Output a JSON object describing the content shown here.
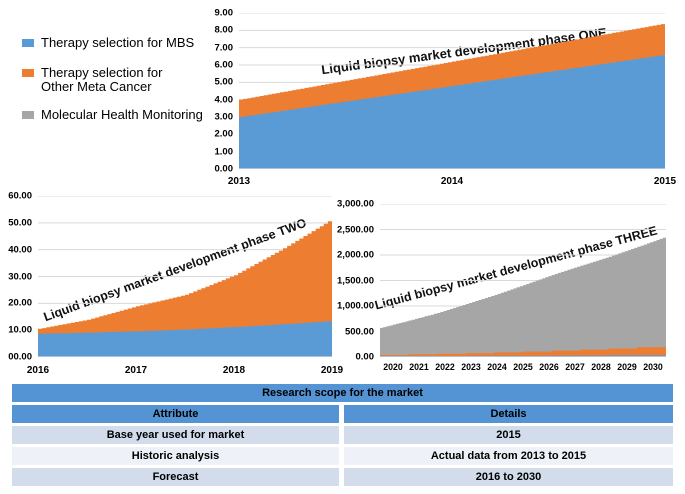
{
  "legend": {
    "items": [
      {
        "label": "Therapy selection for MBS",
        "color": "#5B9BD5"
      },
      {
        "label": "Therapy selection for\nOther Meta Cancer",
        "color": "#ED7D31"
      },
      {
        "label": "Molecular Health Monitoring",
        "color": "#A6A6A6"
      }
    ]
  },
  "colors": {
    "blue": "#5B9BD5",
    "orange": "#ED7D31",
    "gray": "#A6A6A6",
    "grid": "#D9D9D9",
    "axis": "#ABC3DA",
    "table_header": "#5494D4",
    "table_row_light": "#D2DCEB",
    "table_row_lighter": "#EEF1F8"
  },
  "chart_data": [
    {
      "id": "phase-one",
      "type": "area",
      "stacked": true,
      "annotation": "Liquid biopsy market development phase ONE",
      "x": [
        2013,
        2014,
        2015
      ],
      "x_tick_values": [
        2013,
        2014,
        2015
      ],
      "x_tick_labels": [
        "2013",
        "2014",
        "2015"
      ],
      "ylim": [
        0,
        9
      ],
      "grid": true,
      "legend_position": "left",
      "yticks": [
        {
          "value": 0,
          "label": "0.00"
        },
        {
          "value": 1,
          "label": "1.00"
        },
        {
          "value": 2,
          "label": "2.00"
        },
        {
          "value": 3,
          "label": "3.00"
        },
        {
          "value": 4,
          "label": "4.00"
        },
        {
          "value": 5,
          "label": "5.00"
        },
        {
          "value": 6,
          "label": "6.00"
        },
        {
          "value": 7,
          "label": "7.00"
        },
        {
          "value": 8,
          "label": "8.00"
        },
        {
          "value": 9,
          "label": "9.00"
        }
      ],
      "series": [
        {
          "name": "Therapy selection for MBS",
          "color": "#5B9BD5",
          "values": [
            3.0,
            4.8,
            6.6
          ],
          "steps_per_x": 52
        },
        {
          "name": "Therapy selection for Other Meta Cancer",
          "color": "#ED7D31",
          "values": [
            1.0,
            1.4,
            1.8
          ],
          "steps_per_x": 52
        }
      ]
    },
    {
      "id": "phase-two",
      "type": "area",
      "stacked": true,
      "annotation": "Liquid biopsy market development phase TWO",
      "x": [
        2016,
        2016.5,
        2017,
        2017.5,
        2018,
        2018.5,
        2019
      ],
      "x_tick_values": [
        2016,
        2017,
        2018,
        2019
      ],
      "x_tick_labels": [
        "2016",
        "2017",
        "2018",
        "2019"
      ],
      "ylim": [
        0,
        60
      ],
      "grid": true,
      "yticks": [
        {
          "value": 0,
          "label": "00.00"
        },
        {
          "value": 10,
          "label": "10.00"
        },
        {
          "value": 20,
          "label": "20.00"
        },
        {
          "value": 30,
          "label": "30.00"
        },
        {
          "value": 40,
          "label": "40.00"
        },
        {
          "value": 50,
          "label": "50.00"
        },
        {
          "value": 60,
          "label": "60.00"
        }
      ],
      "series": [
        {
          "name": "Therapy selection for MBS",
          "color": "#5B9BD5",
          "values": [
            8.7,
            9.1,
            9.6,
            10.3,
            11.2,
            12.3,
            13.5
          ],
          "steps_per_x": 5
        },
        {
          "name": "Therapy selection for Other Meta Cancer",
          "color": "#ED7D31",
          "values": [
            1.8,
            4.8,
            9.3,
            12.9,
            19.3,
            28.2,
            38.0
          ],
          "steps_per_x": 12
        }
      ]
    },
    {
      "id": "phase-three",
      "type": "area",
      "stacked": true,
      "annotation": "Liquid biopsy market development phase THREE",
      "x": [
        2020,
        2021,
        2022,
        2023,
        2024,
        2025,
        2026,
        2027,
        2028,
        2029,
        2030
      ],
      "x_tick_values": [
        2020,
        2021,
        2022,
        2023,
        2024,
        2025,
        2026,
        2027,
        2028,
        2029,
        2030
      ],
      "x_tick_labels": [
        "2020",
        "2021",
        "2022",
        "2023",
        "2024",
        "2025",
        "2026",
        "2027",
        "2028",
        "2029",
        "2030"
      ],
      "ylim": [
        0,
        3000
      ],
      "grid": true,
      "yticks": [
        {
          "value": 0,
          "label": "0.00"
        },
        {
          "value": 500,
          "label": "500.00"
        },
        {
          "value": 1000,
          "label": "1,000.00"
        },
        {
          "value": 1500,
          "label": "1,500.00"
        },
        {
          "value": 2000,
          "label": "2,000.00"
        },
        {
          "value": 2500,
          "label": "2,500.00"
        },
        {
          "value": 3000,
          "label": "3,000.00"
        }
      ],
      "series": [
        {
          "name": "Therapy selection for MBS",
          "color": "#5B9BD5",
          "values": [
            15,
            17,
            19,
            21,
            23,
            25,
            28,
            30,
            33,
            36,
            40
          ],
          "steps_per_x": 1
        },
        {
          "name": "Therapy selection for Other Meta Cancer",
          "color": "#ED7D31",
          "values": [
            25,
            33,
            43,
            55,
            67,
            81,
            97,
            115,
            134,
            155,
            178
          ],
          "steps_per_x": 1
        },
        {
          "name": "Molecular Health Monitoring",
          "color": "#A6A6A6",
          "values": [
            530,
            665,
            801,
            964,
            1126,
            1304,
            1483,
            1645,
            1800,
            1969,
            2142
          ],
          "steps_per_x": 9
        }
      ]
    }
  ],
  "table": {
    "title": "Research scope for the market",
    "columns": [
      "Attribute",
      "Details"
    ],
    "rows": [
      {
        "attribute": "Base year used for market",
        "details": "2015"
      },
      {
        "attribute": "Historic analysis",
        "details": "Actual data from 2013 to 2015"
      },
      {
        "attribute": "Forecast",
        "details": "2016 to 2030"
      }
    ]
  }
}
